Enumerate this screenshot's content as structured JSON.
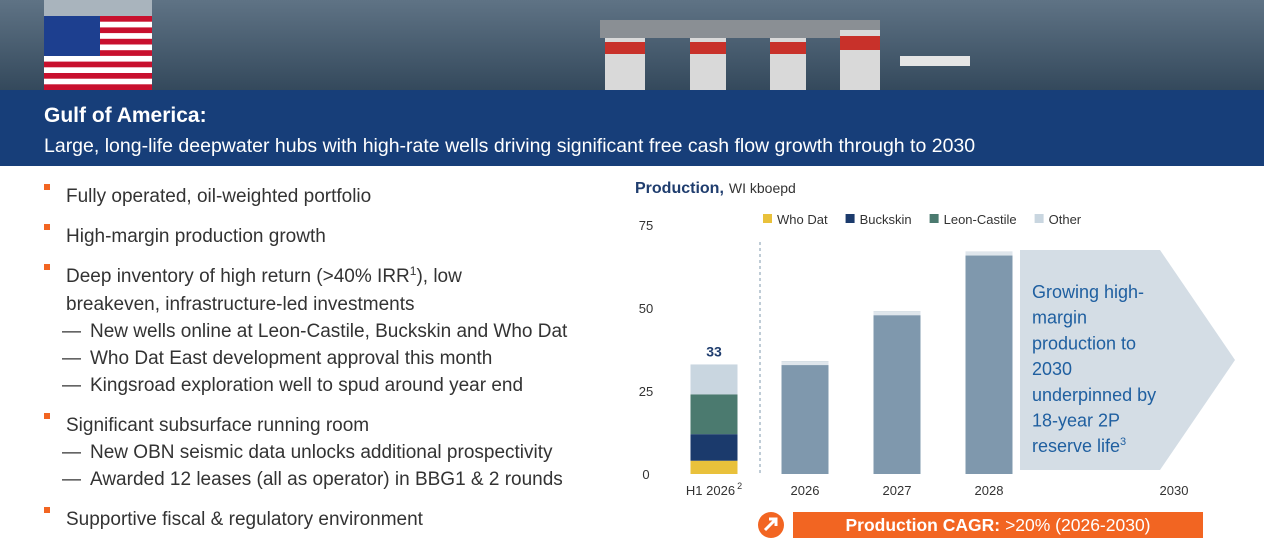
{
  "header": {
    "title": "Gulf of America:",
    "subtitle": "Large, long-life deepwater hubs with high-rate wells driving significant free cash flow growth through to 2030"
  },
  "bullets": [
    {
      "text": "Fully operated, oil-weighted portfolio"
    },
    {
      "text": "High-margin production growth"
    },
    {
      "text_before": "Deep inventory of high return (>40% IRR",
      "sup": "1",
      "text_after": "), low",
      "line2": "breakeven, infrastructure-led investments",
      "subs": [
        "New wells online at Leon-Castile, Buckskin and Who Dat",
        "Who Dat East development approval this month",
        "Kingsroad exploration well to spud around year end"
      ]
    },
    {
      "text": "Significant subsurface running room",
      "subs": [
        "New OBN seismic data unlocks additional prospectivity",
        "Awarded 12 leases (all as operator) in BBG1 & 2 rounds"
      ]
    },
    {
      "text": "Supportive fiscal & regulatory environment"
    }
  ],
  "chart_data": {
    "type": "bar",
    "title": "Production,",
    "subtitle": "WI kboepd",
    "categories": [
      "H1 2026",
      "2026",
      "2027",
      "2028",
      "2030"
    ],
    "category_superscripts": [
      "2",
      null,
      null,
      null,
      null
    ],
    "series": [
      {
        "name": "Who Dat",
        "color": "#e9c13b",
        "values": [
          4,
          null,
          null,
          null,
          null
        ]
      },
      {
        "name": "Buckskin",
        "color": "#1b3a6c",
        "values": [
          8,
          null,
          null,
          null,
          null
        ]
      },
      {
        "name": "Leon-Castile",
        "color": "#4b7a6f",
        "values": [
          12,
          null,
          null,
          null,
          null
        ]
      },
      {
        "name": "Other",
        "color": "#c9d6e0",
        "values": [
          9,
          null,
          null,
          null,
          null
        ]
      }
    ],
    "total_labels": [
      "33",
      null,
      null,
      null,
      null
    ],
    "forecast": {
      "color": "#7f98ad",
      "values": [
        null,
        34,
        49,
        67,
        null
      ]
    },
    "ylim": [
      0,
      75
    ],
    "yticks": [
      0,
      25,
      50,
      75
    ],
    "grid": false,
    "arrow_text": {
      "lines": [
        "Growing high-",
        "margin",
        "production to",
        "2030",
        "underpinned by",
        "18-year 2P",
        "reserve life"
      ],
      "sup": "3"
    },
    "cagr": {
      "label": "Production CAGR:",
      "value": ">20% (2026-2030)"
    }
  }
}
